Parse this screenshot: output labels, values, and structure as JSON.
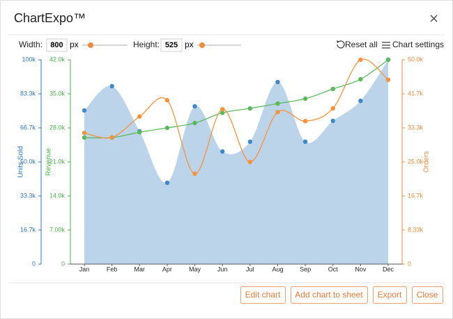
{
  "header": {
    "title": "ChartExpo™"
  },
  "toolbar": {
    "width_label": "Width:",
    "width_value": 800,
    "width_unit": "px",
    "height_label": "Height:",
    "height_value": 525,
    "height_unit": "px",
    "reset": "Reset all",
    "settings": "Chart settings"
  },
  "chart_data": {
    "type": "area-line",
    "categories": [
      "Jan",
      "Feb",
      "Mar",
      "Apr",
      "May",
      "Jun",
      "Jul",
      "Aug",
      "Sep",
      "Oct",
      "Nov",
      "Dec"
    ],
    "ylabel": "Units Sold",
    "y2label": "Revenue",
    "y3label": "Orders",
    "ylim": [
      0,
      100000
    ],
    "yticks": [
      0,
      {
        "value": 16667,
        "label": "16.7k"
      },
      {
        "value": 33333,
        "label": "33.3k"
      },
      {
        "value": 50000,
        "label": "50.0k"
      },
      {
        "value": 66667,
        "label": "66.7k"
      },
      {
        "value": 83333,
        "label": "83.3k"
      },
      {
        "value": 100000,
        "label": "100k"
      }
    ],
    "y2lim": [
      0,
      42000
    ],
    "y2ticks": [
      0,
      {
        "value": 7000,
        "label": "7.00k"
      },
      {
        "value": 14000,
        "label": "14.0k"
      },
      {
        "value": 21000,
        "label": "21.0k"
      },
      {
        "value": 28000,
        "label": "28.0k"
      },
      {
        "value": 35000,
        "label": "35.0k"
      },
      {
        "value": 42000,
        "label": "42.0k"
      }
    ],
    "y3lim": [
      0,
      50000
    ],
    "y3ticks": [
      0,
      {
        "value": 8333,
        "label": "8.33k"
      },
      {
        "value": 16667,
        "label": "16.7k"
      },
      {
        "value": 25000,
        "label": "25.0k"
      },
      {
        "value": 33333,
        "label": "33.3k"
      },
      {
        "value": 41667,
        "label": "41.7k"
      },
      {
        "value": 50000,
        "label": "50.0k"
      }
    ],
    "series": [
      {
        "name": "Units Sold",
        "color": "#3f88c5",
        "fill": "#bcd4ea",
        "axis": "y",
        "values": [
          75200,
          87100,
          65000,
          39800,
          77200,
          55100,
          59900,
          89100,
          59900,
          70100,
          79900,
          100000
        ]
      },
      {
        "name": "Revenue",
        "color": "#5cb85c",
        "axis": "y2",
        "values": [
          26000,
          26000,
          27100,
          28000,
          29000,
          31100,
          32000,
          33000,
          34000,
          36000,
          38000,
          42000
        ]
      },
      {
        "name": "Orders",
        "color": "#f5923e",
        "axis": "y3",
        "values": [
          32100,
          31000,
          36100,
          40100,
          22100,
          37900,
          25000,
          37200,
          35000,
          38100,
          50000,
          45100
        ]
      }
    ]
  },
  "footer": {
    "buttons": [
      "Edit chart",
      "Add chart to sheet",
      "Export",
      "Close"
    ]
  }
}
